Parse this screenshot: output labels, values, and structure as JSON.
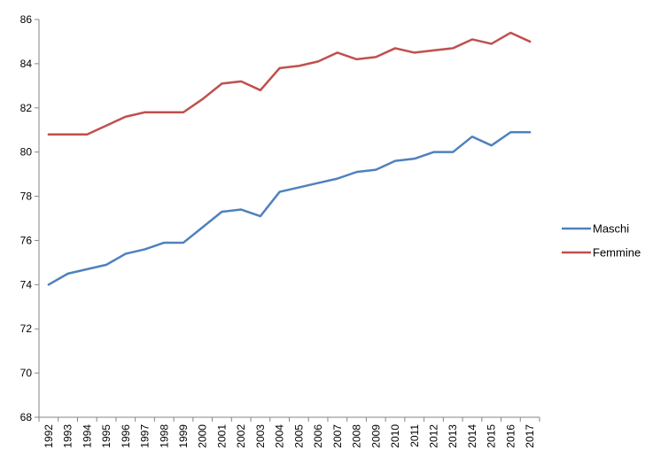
{
  "chart_data": {
    "type": "line",
    "title": "",
    "xlabel": "",
    "ylabel": "",
    "x": [
      "1992",
      "1993",
      "1994",
      "1995",
      "1996",
      "1997",
      "1998",
      "1999",
      "2000",
      "2001",
      "2002",
      "2003",
      "2004",
      "2005",
      "2006",
      "2007",
      "2008",
      "2009",
      "2010",
      "2011",
      "2012",
      "2013",
      "2014",
      "2015",
      "2016",
      "2017"
    ],
    "ylim": [
      68,
      86
    ],
    "yticks": [
      "68",
      "70",
      "72",
      "74",
      "76",
      "78",
      "80",
      "82",
      "84",
      "86"
    ],
    "grid": false,
    "legend_position": "right",
    "series": [
      {
        "name": "Maschi",
        "color": "#4F81BD",
        "values": [
          74.0,
          74.5,
          74.7,
          74.9,
          75.4,
          75.6,
          75.9,
          75.9,
          76.6,
          77.3,
          77.4,
          77.1,
          78.2,
          78.4,
          78.6,
          78.8,
          79.1,
          79.2,
          79.6,
          79.7,
          80.0,
          80.0,
          80.7,
          80.3,
          80.9,
          80.9
        ]
      },
      {
        "name": "Femmine",
        "color": "#C0504D",
        "values": [
          80.8,
          80.8,
          80.8,
          81.2,
          81.6,
          81.8,
          81.8,
          81.8,
          82.4,
          83.1,
          83.2,
          82.8,
          83.8,
          83.9,
          84.1,
          84.5,
          84.2,
          84.3,
          84.7,
          84.5,
          84.6,
          84.7,
          85.1,
          84.9,
          85.4,
          85.0
        ]
      }
    ]
  }
}
